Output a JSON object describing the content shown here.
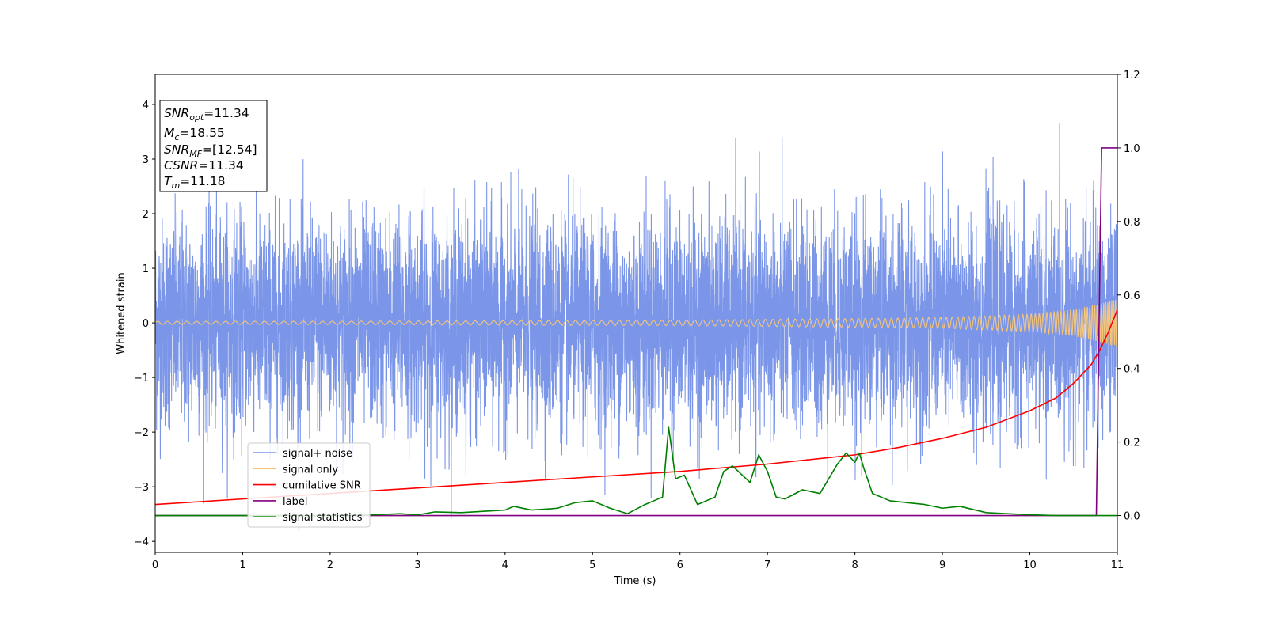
{
  "chart_data": {
    "type": "line",
    "xlabel": "Time (s)",
    "ylabel": "Whitened strain",
    "xlim": [
      0,
      11
    ],
    "ylim": [
      -4.2,
      4.55
    ],
    "y2lim": [
      -0.1,
      1.2
    ],
    "xticks": [
      "0",
      "1",
      "2",
      "3",
      "4",
      "5",
      "6",
      "7",
      "8",
      "9",
      "10",
      "11"
    ],
    "yticks": [
      "−4",
      "−3",
      "−2",
      "−1",
      "0",
      "1",
      "2",
      "3",
      "4"
    ],
    "y2ticks": [
      "0.0",
      "0.2",
      "0.4",
      "0.6",
      "0.8",
      "1.0",
      "1.2"
    ],
    "grid": false,
    "legend_position": "lower-left",
    "annotation": {
      "lines": [
        {
          "main": "SNR",
          "sub": "opt",
          "value": "=11.34"
        },
        {
          "main": "M",
          "sub": "c",
          "value": "=18.55"
        },
        {
          "main": "SNR",
          "sub": "MF",
          "value": "=[12.54]"
        },
        {
          "main": "CSNR",
          "sub": "",
          "value": "=11.34"
        },
        {
          "main": "T",
          "sub": "m",
          "value": "=11.18"
        }
      ]
    },
    "series": [
      {
        "name": "signal+ noise",
        "color": "#7b96e8",
        "axis": "left",
        "description_values": {
          "mean": 0,
          "std": 0.95,
          "min": -3.8,
          "max": 3.65
        }
      },
      {
        "name": "signal only",
        "color": "#f5c57a",
        "axis": "left",
        "envelope": {
          "x": [
            0,
            2,
            4,
            6,
            8,
            9,
            10,
            10.5,
            10.8,
            11
          ],
          "amplitude": [
            0.03,
            0.03,
            0.04,
            0.05,
            0.08,
            0.1,
            0.16,
            0.24,
            0.35,
            0.45
          ]
        }
      },
      {
        "name": "cumilative SNR",
        "color": "#ff0000",
        "axis": "right",
        "x": [
          0,
          1,
          2,
          3,
          4,
          5,
          6,
          7,
          8,
          8.5,
          9,
          9.5,
          10,
          10.3,
          10.5,
          10.7,
          10.8,
          10.9,
          11
        ],
        "y": [
          0.03,
          0.045,
          0.06,
          0.075,
          0.09,
          0.105,
          0.12,
          0.14,
          0.165,
          0.185,
          0.21,
          0.24,
          0.285,
          0.32,
          0.36,
          0.41,
          0.45,
          0.5,
          0.56
        ]
      },
      {
        "name": "label",
        "color": "#800080",
        "axis": "right",
        "x": [
          0,
          10.76,
          10.82,
          11
        ],
        "y": [
          0.0,
          0.0,
          1.0,
          1.0
        ]
      },
      {
        "name": "signal statistics",
        "color": "#008000",
        "axis": "right",
        "x": [
          0,
          1,
          2,
          2.5,
          2.8,
          3,
          3.2,
          3.5,
          4,
          4.1,
          4.3,
          4.5,
          4.6,
          4.8,
          5,
          5.2,
          5.4,
          5.6,
          5.8,
          5.87,
          5.95,
          6.05,
          6.2,
          6.4,
          6.5,
          6.6,
          6.8,
          6.9,
          7,
          7.1,
          7.2,
          7.4,
          7.6,
          7.8,
          7.9,
          8,
          8.05,
          8.1,
          8.2,
          8.4,
          8.6,
          8.8,
          9,
          9.2,
          9.5,
          10,
          10.3,
          10.75,
          11
        ],
        "y": [
          0,
          0,
          0,
          0.002,
          0.005,
          0.002,
          0.01,
          0.008,
          0.015,
          0.025,
          0.015,
          0.018,
          0.02,
          0.035,
          0.04,
          0.02,
          0.005,
          0.03,
          0.05,
          0.24,
          0.1,
          0.11,
          0.03,
          0.05,
          0.12,
          0.135,
          0.09,
          0.165,
          0.12,
          0.05,
          0.045,
          0.07,
          0.06,
          0.14,
          0.17,
          0.145,
          0.17,
          0.13,
          0.06,
          0.04,
          0.035,
          0.03,
          0.02,
          0.025,
          0.008,
          0.002,
          0,
          0,
          0
        ]
      }
    ]
  }
}
